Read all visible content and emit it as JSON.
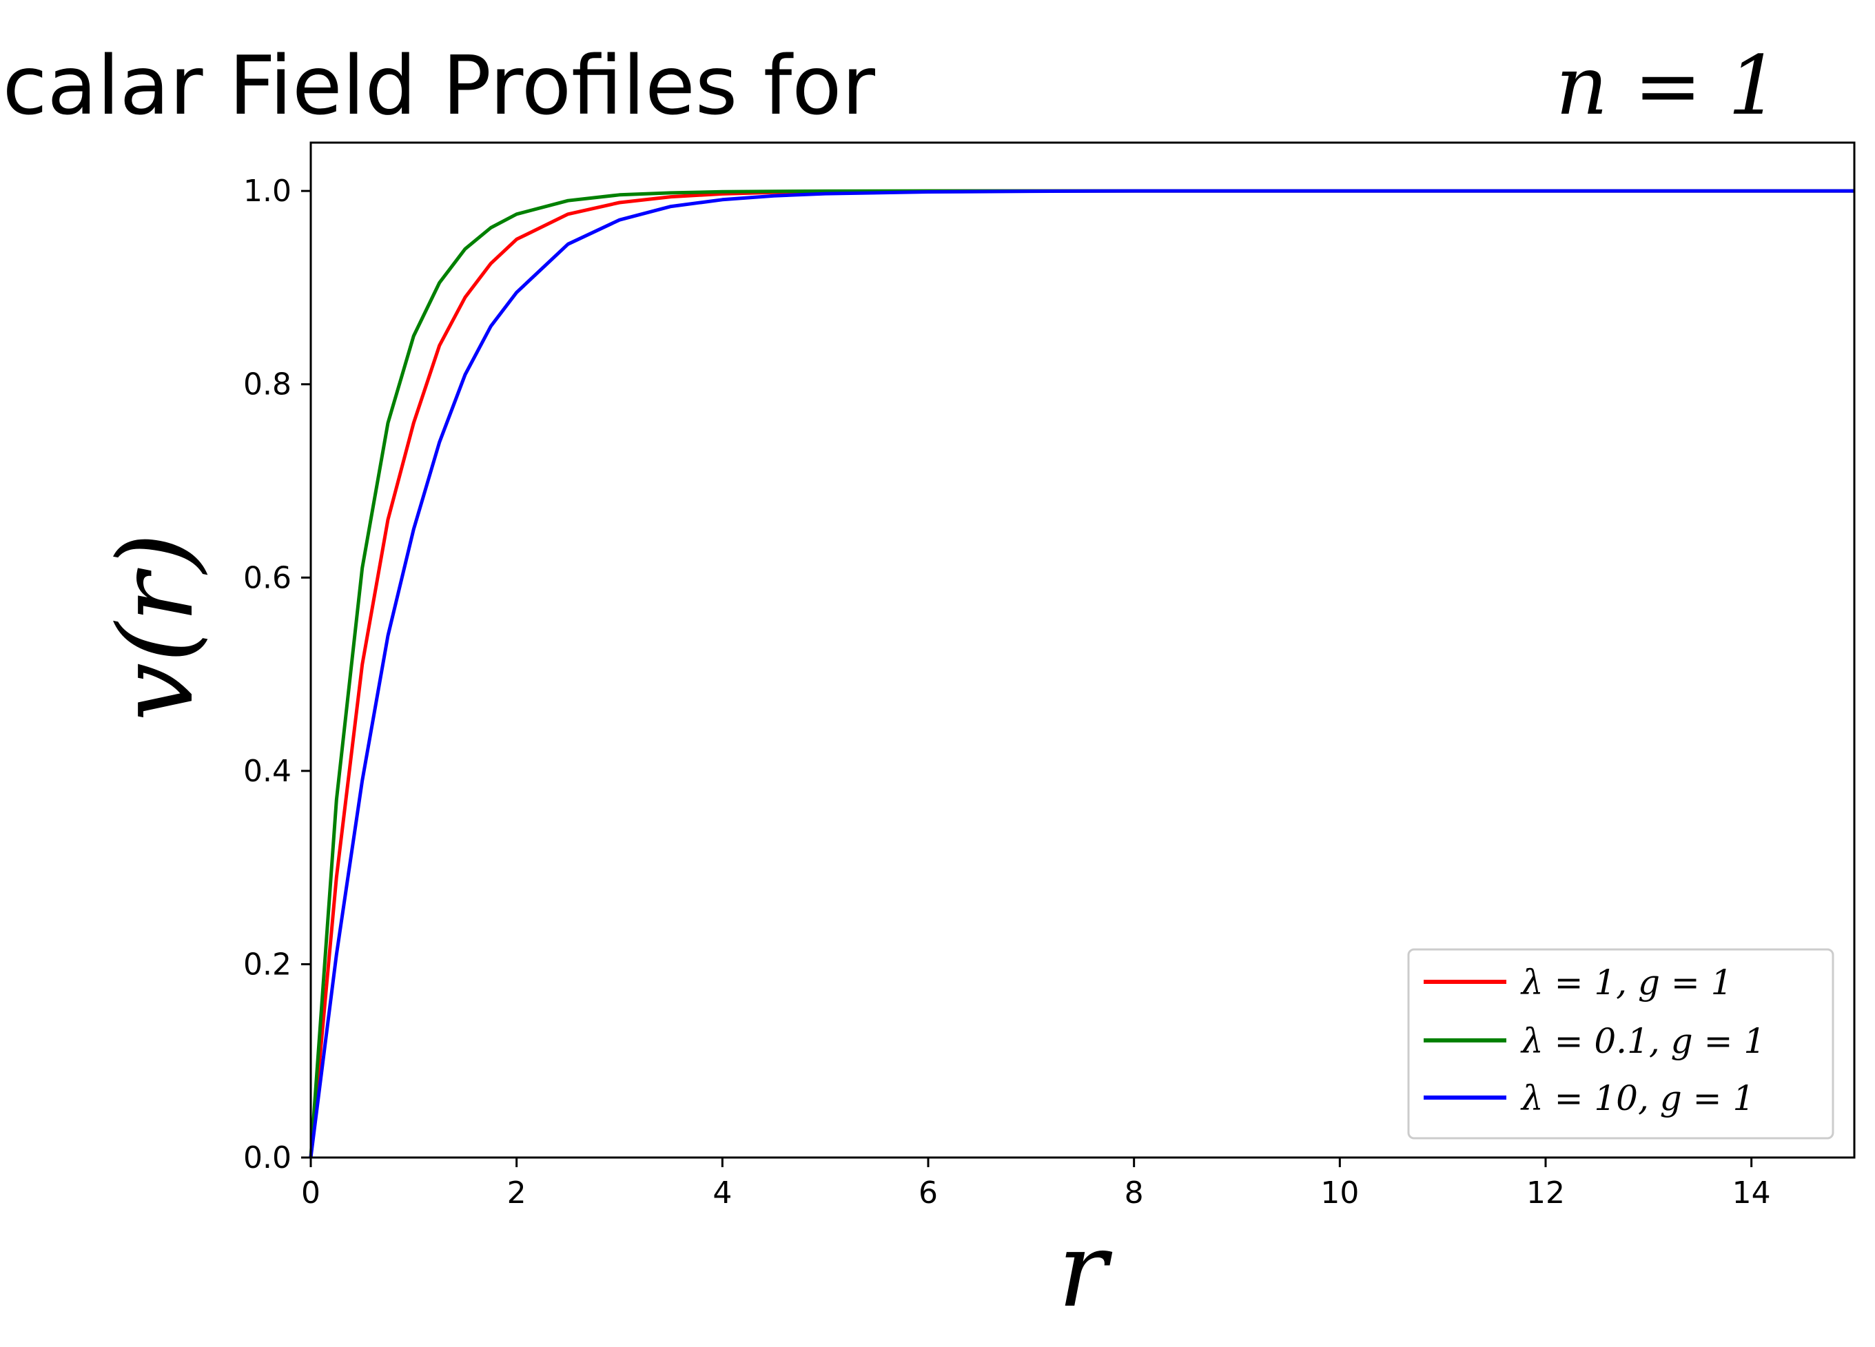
{
  "chart_data": {
    "type": "line",
    "title": "Scalar Field Profiles for",
    "title_math": "n = 1",
    "xlabel": "r",
    "ylabel": "v(r)",
    "xlim": [
      0,
      15
    ],
    "ylim": [
      0,
      1.05
    ],
    "x_ticks": [
      0,
      2,
      4,
      6,
      8,
      10,
      12,
      14
    ],
    "x_tick_labels": [
      "0",
      "2",
      "4",
      "6",
      "8",
      "10",
      "12",
      "14"
    ],
    "y_ticks": [
      0.0,
      0.2,
      0.4,
      0.6,
      0.8,
      1.0
    ],
    "y_tick_labels": [
      "0.0",
      "0.2",
      "0.4",
      "0.6",
      "0.8",
      "1.0"
    ],
    "grid": false,
    "legend_position": "bottom-right",
    "x": [
      0,
      0.25,
      0.5,
      0.75,
      1,
      1.25,
      1.5,
      1.75,
      2,
      2.5,
      3,
      3.5,
      4,
      4.5,
      5,
      6,
      7,
      8,
      10,
      12,
      15
    ],
    "series": [
      {
        "name": "λ = 1,  g = 1",
        "color": "#ff0000",
        "values": [
          0,
          0.29,
          0.51,
          0.66,
          0.76,
          0.84,
          0.89,
          0.925,
          0.95,
          0.976,
          0.988,
          0.994,
          0.997,
          0.9985,
          0.9993,
          0.9998,
          1,
          1,
          1,
          1,
          1
        ]
      },
      {
        "name": "λ = 0.1,  g = 1",
        "color": "#008000",
        "values": [
          0,
          0.37,
          0.61,
          0.76,
          0.85,
          0.905,
          0.94,
          0.962,
          0.976,
          0.99,
          0.996,
          0.998,
          0.9992,
          0.9996,
          0.9998,
          1,
          1,
          1,
          1,
          1,
          1
        ]
      },
      {
        "name": "λ = 10,  g = 1",
        "color": "#0000ff",
        "values": [
          0,
          0.21,
          0.39,
          0.54,
          0.65,
          0.74,
          0.81,
          0.86,
          0.895,
          0.945,
          0.97,
          0.984,
          0.991,
          0.995,
          0.9972,
          0.999,
          0.9997,
          1,
          1,
          1,
          1
        ]
      }
    ]
  }
}
